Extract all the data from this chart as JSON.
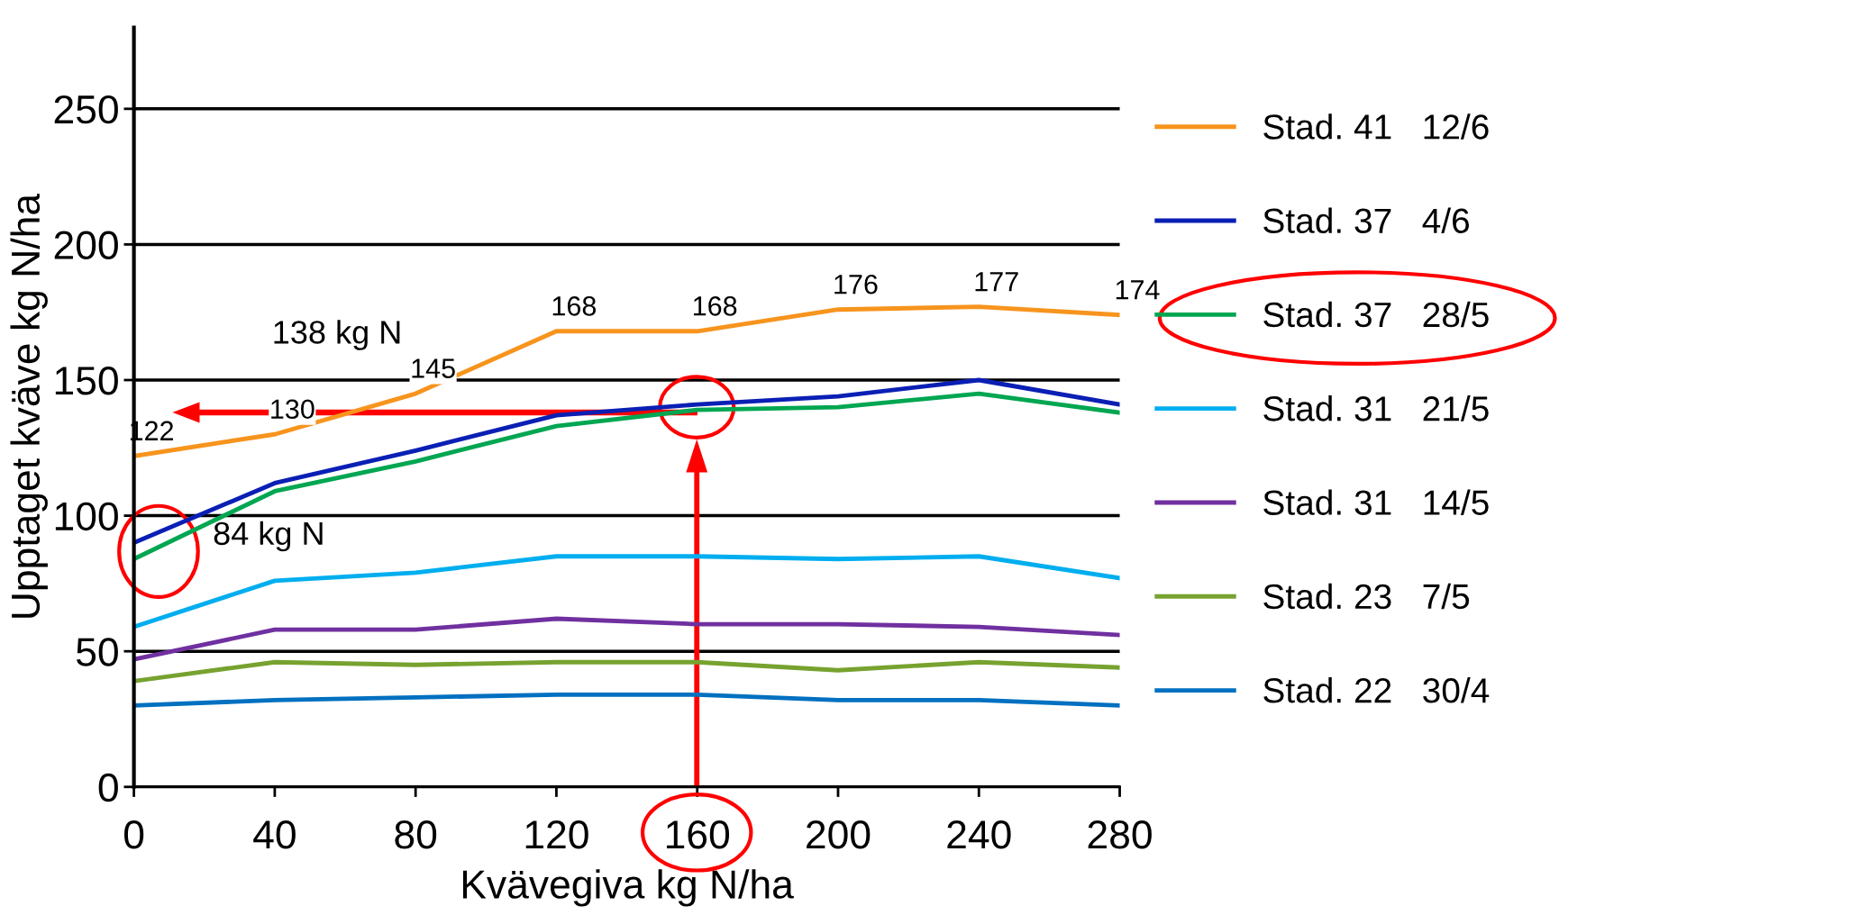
{
  "chart_data": {
    "type": "line",
    "xlabel": "Kvävegiva kg N/ha",
    "ylabel": "Upptaget kväve kg N/ha",
    "x": [
      0,
      40,
      80,
      120,
      160,
      200,
      240,
      280
    ],
    "xlim": [
      0,
      280
    ],
    "xticks": [
      0,
      40,
      80,
      120,
      160,
      200,
      240,
      280
    ],
    "ylim": [
      0,
      280
    ],
    "yticks": [
      0,
      50,
      100,
      150,
      200,
      250
    ],
    "grid": "y",
    "legend": "right",
    "marker": "none",
    "line_style": "solid",
    "series": [
      {
        "name": "Stad. 41   12/6",
        "color": "#f7941d",
        "values": [
          122,
          130,
          145,
          168,
          168,
          176,
          177,
          174
        ],
        "value_labels": [
          "122",
          "130",
          "145",
          "168",
          "168",
          "176",
          "177",
          "174"
        ]
      },
      {
        "name": "Stad. 37   4/6",
        "color": "#0a1fb4",
        "values": [
          90,
          112,
          124,
          137,
          141,
          144,
          150,
          141
        ]
      },
      {
        "name": "Stad. 37   28/5",
        "color": "#00a651",
        "values": [
          84,
          109,
          120,
          133,
          139,
          140,
          145,
          138
        ]
      },
      {
        "name": "Stad. 31   21/5",
        "color": "#00aeef",
        "values": [
          59,
          76,
          79,
          85,
          85,
          84,
          85,
          77
        ]
      },
      {
        "name": "Stad. 31   14/5",
        "color": "#7030a0",
        "values": [
          47,
          58,
          58,
          62,
          60,
          60,
          59,
          56
        ]
      },
      {
        "name": "Stad. 23   7/5",
        "color": "#77a22f",
        "values": [
          39,
          46,
          45,
          46,
          46,
          43,
          46,
          44
        ]
      },
      {
        "name": "Stad. 22   30/4",
        "color": "#0070c0",
        "values": [
          30,
          32,
          33,
          34,
          34,
          32,
          32,
          30
        ]
      }
    ],
    "annotations": [
      "138 kg N",
      "84 kg N"
    ]
  }
}
